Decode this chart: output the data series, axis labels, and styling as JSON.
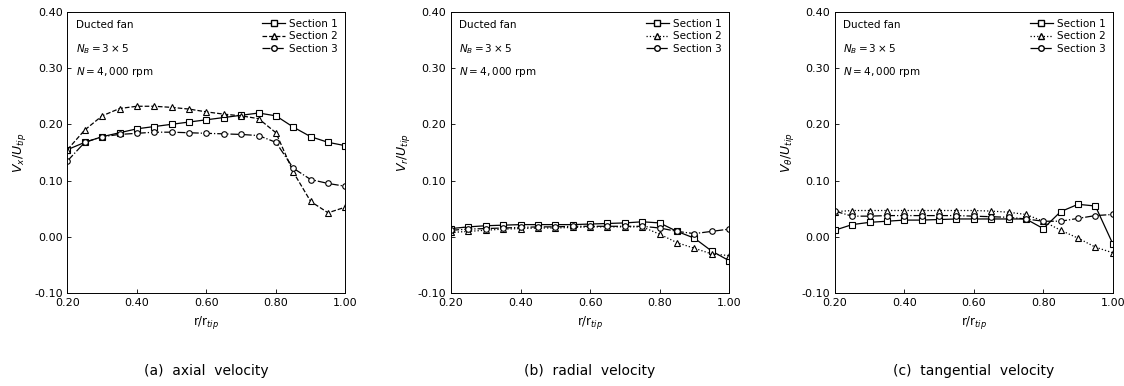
{
  "axial": {
    "s1_x": [
      0.2,
      0.25,
      0.3,
      0.35,
      0.4,
      0.45,
      0.5,
      0.55,
      0.6,
      0.65,
      0.7,
      0.75,
      0.8,
      0.85,
      0.9,
      0.95,
      1.0
    ],
    "s1_y": [
      0.155,
      0.168,
      0.178,
      0.185,
      0.192,
      0.196,
      0.2,
      0.204,
      0.208,
      0.212,
      0.216,
      0.22,
      0.215,
      0.195,
      0.178,
      0.168,
      0.162
    ],
    "s2_x": [
      0.2,
      0.25,
      0.3,
      0.35,
      0.4,
      0.45,
      0.5,
      0.55,
      0.6,
      0.65,
      0.7,
      0.75,
      0.8,
      0.85,
      0.9,
      0.95,
      1.0
    ],
    "s2_y": [
      0.155,
      0.19,
      0.215,
      0.228,
      0.232,
      0.232,
      0.23,
      0.227,
      0.222,
      0.218,
      0.215,
      0.21,
      0.185,
      0.115,
      0.063,
      0.043,
      0.053
    ],
    "s3_x": [
      0.2,
      0.25,
      0.3,
      0.35,
      0.4,
      0.45,
      0.5,
      0.55,
      0.6,
      0.65,
      0.7,
      0.75,
      0.8,
      0.85,
      0.9,
      0.95,
      1.0
    ],
    "s3_y": [
      0.135,
      0.168,
      0.178,
      0.182,
      0.184,
      0.186,
      0.186,
      0.185,
      0.184,
      0.183,
      0.182,
      0.18,
      0.168,
      0.122,
      0.102,
      0.095,
      0.09
    ]
  },
  "radial": {
    "s1_x": [
      0.2,
      0.25,
      0.3,
      0.35,
      0.4,
      0.45,
      0.5,
      0.55,
      0.6,
      0.65,
      0.7,
      0.75,
      0.8,
      0.85,
      0.9,
      0.95,
      1.0
    ],
    "s1_y": [
      0.015,
      0.018,
      0.02,
      0.021,
      0.022,
      0.022,
      0.022,
      0.022,
      0.023,
      0.024,
      0.025,
      0.027,
      0.025,
      0.01,
      -0.002,
      -0.025,
      -0.042
    ],
    "s2_x": [
      0.2,
      0.25,
      0.3,
      0.35,
      0.4,
      0.45,
      0.5,
      0.55,
      0.6,
      0.65,
      0.7,
      0.75,
      0.8,
      0.85,
      0.9,
      0.95,
      1.0
    ],
    "s2_y": [
      0.008,
      0.01,
      0.012,
      0.014,
      0.015,
      0.016,
      0.016,
      0.017,
      0.018,
      0.018,
      0.018,
      0.018,
      0.005,
      -0.01,
      -0.02,
      -0.03,
      -0.033
    ],
    "s3_x": [
      0.2,
      0.25,
      0.3,
      0.35,
      0.4,
      0.45,
      0.5,
      0.55,
      0.6,
      0.65,
      0.7,
      0.75,
      0.8,
      0.85,
      0.9,
      0.95,
      1.0
    ],
    "s3_y": [
      0.012,
      0.014,
      0.015,
      0.016,
      0.017,
      0.018,
      0.018,
      0.019,
      0.019,
      0.019,
      0.019,
      0.019,
      0.016,
      0.01,
      0.006,
      0.01,
      0.014
    ]
  },
  "tangential": {
    "s1_x": [
      0.2,
      0.25,
      0.3,
      0.35,
      0.4,
      0.45,
      0.5,
      0.55,
      0.6,
      0.65,
      0.7,
      0.75,
      0.8,
      0.85,
      0.9,
      0.95,
      1.0
    ],
    "s1_y": [
      0.012,
      0.022,
      0.026,
      0.028,
      0.03,
      0.03,
      0.031,
      0.032,
      0.032,
      0.032,
      0.032,
      0.032,
      0.015,
      0.045,
      0.058,
      0.055,
      -0.012
    ],
    "s2_x": [
      0.2,
      0.25,
      0.3,
      0.35,
      0.4,
      0.45,
      0.5,
      0.55,
      0.6,
      0.65,
      0.7,
      0.75,
      0.8,
      0.85,
      0.9,
      0.95,
      1.0
    ],
    "s2_y": [
      0.045,
      0.047,
      0.047,
      0.047,
      0.047,
      0.047,
      0.047,
      0.047,
      0.047,
      0.046,
      0.044,
      0.04,
      0.028,
      0.012,
      -0.002,
      -0.018,
      -0.028
    ],
    "s3_x": [
      0.2,
      0.25,
      0.3,
      0.35,
      0.4,
      0.45,
      0.5,
      0.55,
      0.6,
      0.65,
      0.7,
      0.75,
      0.8,
      0.85,
      0.9,
      0.95,
      1.0
    ],
    "s3_y": [
      0.046,
      0.037,
      0.037,
      0.038,
      0.038,
      0.038,
      0.038,
      0.038,
      0.037,
      0.036,
      0.035,
      0.032,
      0.028,
      0.028,
      0.033,
      0.038,
      0.04
    ]
  },
  "ylim": [
    -0.1,
    0.4
  ],
  "xlim": [
    0.2,
    1.0
  ],
  "yticks": [
    -0.1,
    0.0,
    0.1,
    0.2,
    0.3,
    0.4
  ],
  "xticks": [
    0.2,
    0.4,
    0.6,
    0.8,
    1.0
  ],
  "xlabel": "r/r$_{tip}$",
  "ylabels": [
    "$V_x/U_{tip}$",
    "$V_r/U_{tip}$",
    "$V_\\theta/U_{tip}$"
  ],
  "captions": [
    "(a)  axial  velocity",
    "(b)  radial  velocity",
    "(c)  tangential  velocity"
  ],
  "annotation_line1": "Ducted fan",
  "annotation_line2": "$N_B = 3 \\times 5$",
  "annotation_line3": "$N = 4,000$ rpm",
  "legend_labels": [
    "Section 1",
    "Section 2",
    "Section 3"
  ],
  "linestyles_s1": [
    "-",
    "-",
    "-"
  ],
  "linestyles_s2": [
    "--",
    ":",
    ":"
  ],
  "linestyles_s3": [
    "-.",
    "-.",
    "-."
  ]
}
